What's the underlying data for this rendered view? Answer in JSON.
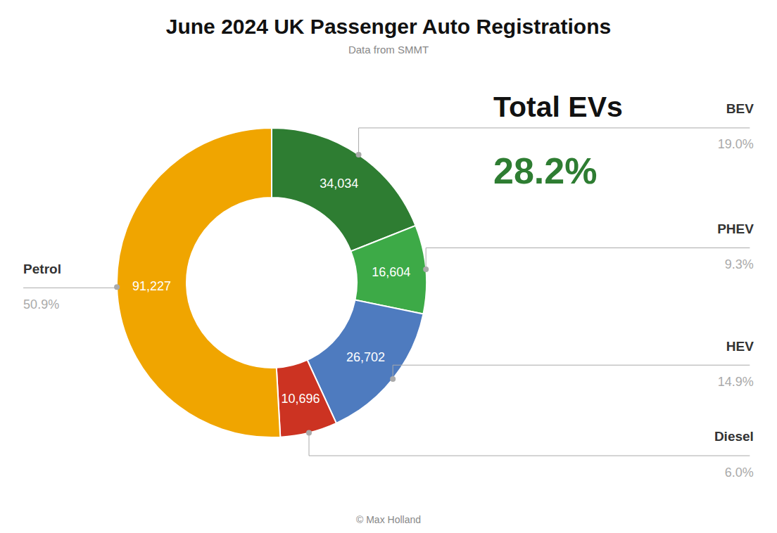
{
  "chart_data": {
    "type": "donut",
    "title": "June 2024 UK Passenger Auto Registrations",
    "subtitle": "Data from SMMT",
    "caption": "© Max Holland",
    "categories": [
      "BEV",
      "PHEV",
      "HEV",
      "Diesel",
      "Petrol"
    ],
    "values": [
      34034,
      16604,
      26702,
      10696,
      91227
    ],
    "value_labels": [
      "34,034",
      "16,604",
      "26,702",
      "10,696",
      "91,227"
    ],
    "percentage_labels": [
      "19.0%",
      "9.3%",
      "14.9%",
      "6.0%",
      "50.9%"
    ],
    "colors": [
      "#2e7d32",
      "#3daa47",
      "#4e7bbf",
      "#cc3322",
      "#f0a500"
    ],
    "data_labels": true,
    "annotations": [
      {
        "text": "Total EVs"
      },
      {
        "text": "28.2%",
        "color": "#2e7d32"
      }
    ]
  }
}
